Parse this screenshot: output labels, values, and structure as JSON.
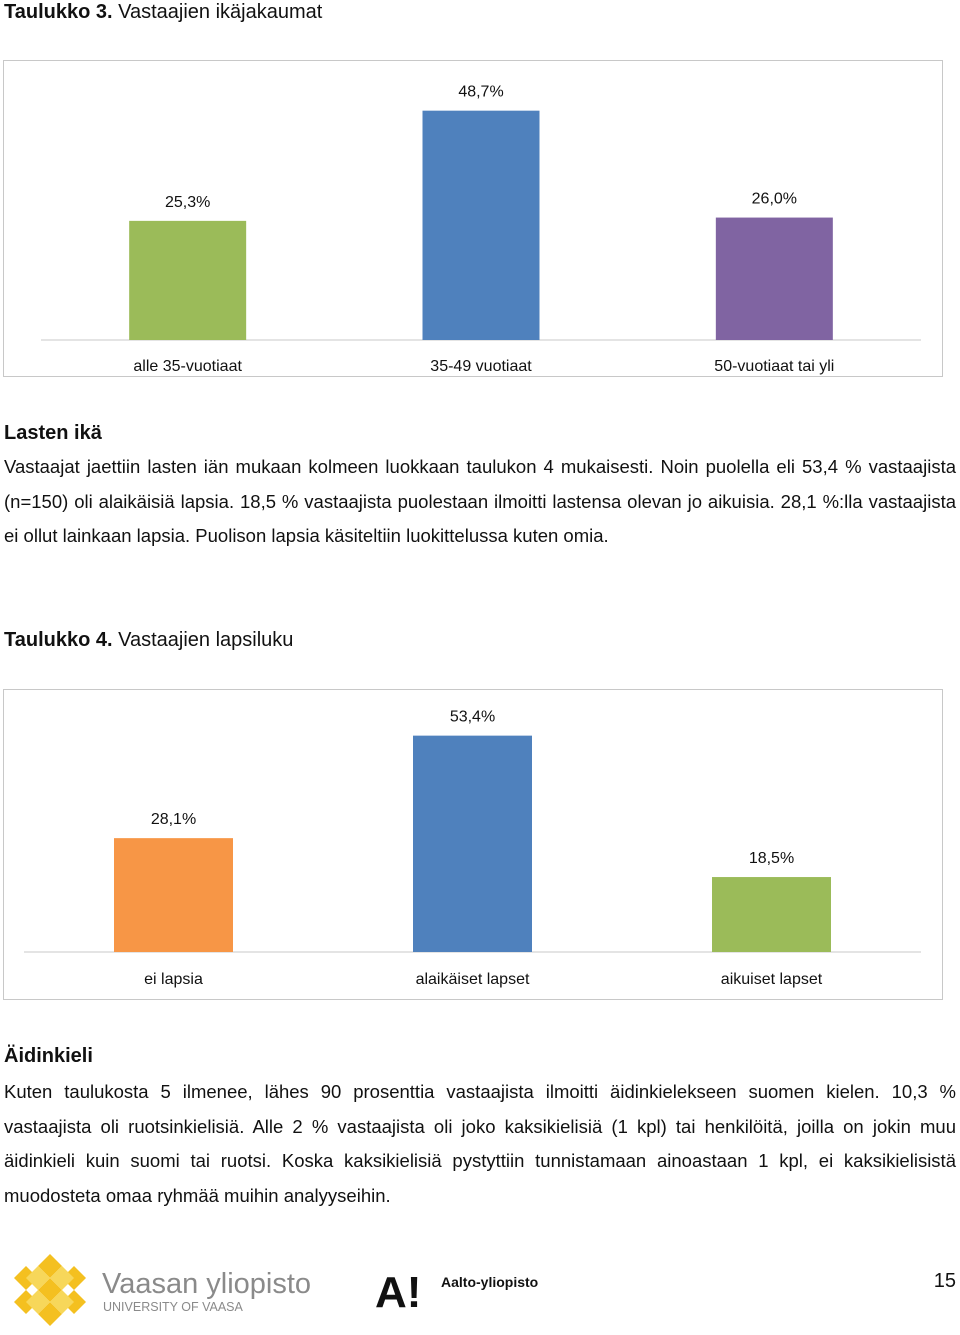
{
  "table3": {
    "label": "Taulukko 3.",
    "title": "Vastaajien ikäjakaumat"
  },
  "section_age": {
    "heading": "Lasten ikä",
    "paragraph": "Vastaajat jaettiin lasten iän mukaan kolmeen luokkaan taulukon 4 mukaisesti. Noin puolella eli 53,4 % vastaajista (n=150) oli alaikäisiä lapsia. 18,5 % vastaajista puolestaan ilmoitti lastensa olevan jo aikuisia. 28,1 %:lla vastaajista ei ollut lainkaan lapsia. Puolison lapsia käsiteltiin luokittelussa kuten omia."
  },
  "table4": {
    "label": "Taulukko 4.",
    "title": "Vastaajien lapsiluku"
  },
  "section_language": {
    "heading": "Äidinkieli",
    "paragraph": "Kuten taulukosta 5 ilmenee, lähes 90 prosenttia vastaajista ilmoitti äidinkielekseen suomen kielen. 10,3 % vastaajista oli ruotsinkielisiä. Alle 2 % vastaajista oli joko kaksikielisiä (1 kpl) tai henkilöitä, joilla on jokin muu äidinkieli kuin suomi tai ruotsi. Koska kaksikielisiä pystyttiin tunnistamaan ainoastaan 1 kpl, ei kaksikielisistä muodosteta omaa ryhmää muihin analyyseihin."
  },
  "footer": {
    "logo_vaasa_main": "Vaasan yliopisto",
    "logo_vaasa_sub": "UNIVERSITY OF VAASA",
    "logo_aalto_letter": "A!",
    "logo_aalto_text": "Aalto-yliopisto",
    "page_number": "15"
  },
  "chart_data": [
    {
      "type": "bar",
      "categories": [
        "alle 35-vuotiaat",
        "35-49 vuotiaat",
        "50-vuotiaat tai yli"
      ],
      "values": [
        25.3,
        48.7,
        26.0
      ],
      "labels": [
        "25,3%",
        "48,7%",
        "26,0%"
      ],
      "colors": [
        "#9bbb59",
        "#4f81bd",
        "#8064a2"
      ],
      "ylim": [
        0,
        55
      ],
      "grid": false
    },
    {
      "type": "bar",
      "categories": [
        "ei lapsia",
        "alaikäiset lapset",
        "aikuiset lapset"
      ],
      "values": [
        28.1,
        53.4,
        18.5
      ],
      "labels": [
        "28,1%",
        "53,4%",
        "18,5%"
      ],
      "colors": [
        "#f79646",
        "#4f81bd",
        "#9bbb59"
      ],
      "ylim": [
        0,
        58
      ],
      "grid": false
    }
  ]
}
